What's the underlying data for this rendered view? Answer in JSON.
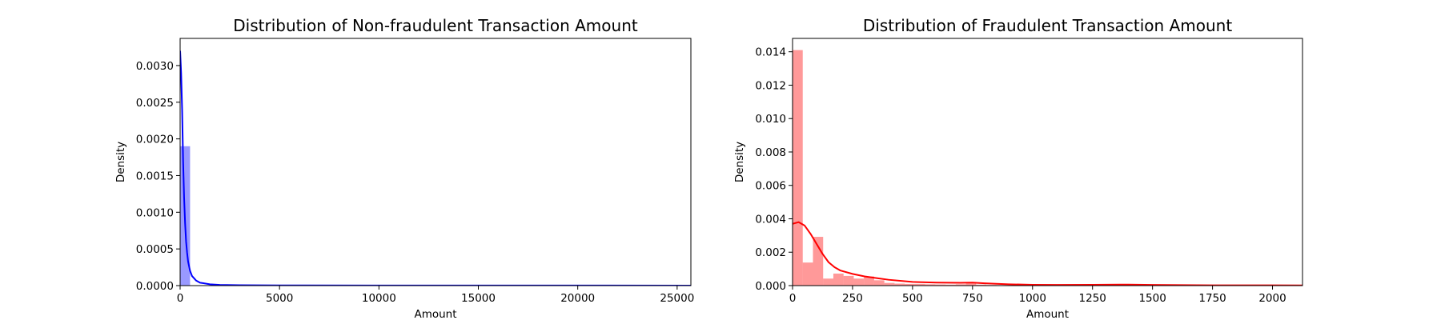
{
  "chart_data": [
    {
      "type": "histogram+kde",
      "title": "Distribution of Non-fraudulent Transaction Amount",
      "xlabel": "Amount",
      "ylabel": "Density",
      "xlim": [
        0,
        25691
      ],
      "ylim": [
        0,
        0.00337
      ],
      "xticks": [
        0,
        5000,
        10000,
        15000,
        20000,
        25000
      ],
      "xtick_labels": [
        "0",
        "5000",
        "10000",
        "15000",
        "20000",
        "25000"
      ],
      "yticks": [
        0,
        0.0005,
        0.001,
        0.0015,
        0.002,
        0.0025,
        0.003
      ],
      "ytick_labels": [
        "0.0000",
        "0.0005",
        "0.0010",
        "0.0015",
        "0.0020",
        "0.0025",
        "0.0030"
      ],
      "bar_color": "#0000ff",
      "line_color": "#0000ff",
      "bins": [
        {
          "x0": 0,
          "x1": 500,
          "density": 0.0019
        }
      ],
      "kde": {
        "x": [
          0,
          50,
          100,
          150,
          200,
          250,
          300,
          350,
          400,
          500,
          600,
          800,
          1000,
          1500,
          2000,
          3000,
          5000,
          10000,
          15000,
          20000,
          25691
        ],
        "y": [
          0.0032,
          0.0029,
          0.0024,
          0.0017,
          0.0012,
          0.00085,
          0.0006,
          0.00045,
          0.00033,
          0.0002,
          0.00013,
          7e-05,
          4e-05,
          1.8e-05,
          1e-05,
          6e-06,
          3e-06,
          1.5e-06,
          1e-06,
          8e-07,
          5e-07
        ]
      }
    },
    {
      "type": "histogram+kde",
      "title": "Distribution of Fraudulent Transaction Amount",
      "xlabel": "Amount",
      "ylabel": "Density",
      "xlim": [
        0,
        2125
      ],
      "ylim": [
        0,
        0.0148
      ],
      "xticks": [
        0,
        250,
        500,
        750,
        1000,
        1250,
        1500,
        1750,
        2000
      ],
      "xtick_labels": [
        "0",
        "250",
        "500",
        "750",
        "1000",
        "1250",
        "1500",
        "1750",
        "2000"
      ],
      "yticks": [
        0,
        0.002,
        0.004,
        0.006,
        0.008,
        0.01,
        0.012,
        0.014
      ],
      "ytick_labels": [
        "0.000",
        "0.002",
        "0.004",
        "0.006",
        "0.008",
        "0.010",
        "0.012",
        "0.014"
      ],
      "bar_color": "#ff0000",
      "line_color": "#ff0000",
      "bins": [
        {
          "x0": 0,
          "x1": 42.5,
          "density": 0.0141
        },
        {
          "x0": 42.5,
          "x1": 85,
          "density": 0.00138
        },
        {
          "x0": 85,
          "x1": 127.5,
          "density": 0.00292
        },
        {
          "x0": 127.5,
          "x1": 170,
          "density": 0.00042
        },
        {
          "x0": 170,
          "x1": 212.5,
          "density": 0.00072
        },
        {
          "x0": 212.5,
          "x1": 255,
          "density": 0.00058
        },
        {
          "x0": 255,
          "x1": 297.5,
          "density": 0.00042
        },
        {
          "x0": 297.5,
          "x1": 340,
          "density": 0.00055
        },
        {
          "x0": 340,
          "x1": 382.5,
          "density": 0.00032
        },
        {
          "x0": 382.5,
          "x1": 425,
          "density": 0.00016
        },
        {
          "x0": 425,
          "x1": 467.5,
          "density": 0.00012
        },
        {
          "x0": 467.5,
          "x1": 510,
          "density": 0.0001
        },
        {
          "x0": 510,
          "x1": 552.5,
          "density": 0.0001
        },
        {
          "x0": 552.5,
          "x1": 595,
          "density": 8e-05
        },
        {
          "x0": 595,
          "x1": 637.5,
          "density": 7e-05
        },
        {
          "x0": 637.5,
          "x1": 680,
          "density": 6e-05
        },
        {
          "x0": 680,
          "x1": 722.5,
          "density": 8e-05
        },
        {
          "x0": 722.5,
          "x1": 765,
          "density": 0.00012
        },
        {
          "x0": 765,
          "x1": 807.5,
          "density": 6e-05
        },
        {
          "x0": 807.5,
          "x1": 850,
          "density": 4e-05
        },
        {
          "x0": 850,
          "x1": 892.5,
          "density": 3e-05
        },
        {
          "x0": 892.5,
          "x1": 935,
          "density": 2e-05
        },
        {
          "x0": 935,
          "x1": 977.5,
          "density": 2e-05
        },
        {
          "x0": 977.5,
          "x1": 1020,
          "density": 2e-05
        },
        {
          "x0": 1275,
          "x1": 1317.5,
          "density": 4e-05
        },
        {
          "x0": 1360,
          "x1": 1402.5,
          "density": 4e-05
        },
        {
          "x0": 1445,
          "x1": 1487.5,
          "density": 3e-05
        },
        {
          "x0": 2082.5,
          "x1": 2125,
          "density": 2e-05
        }
      ],
      "kde": {
        "x": [
          0,
          25,
          50,
          75,
          100,
          125,
          150,
          175,
          200,
          250,
          300,
          350,
          400,
          500,
          600,
          700,
          750,
          800,
          900,
          1000,
          1100,
          1250,
          1400,
          1500,
          1750,
          2000,
          2125
        ],
        "y": [
          0.0037,
          0.0038,
          0.0036,
          0.0031,
          0.0025,
          0.0019,
          0.0014,
          0.0011,
          0.0009,
          0.0007,
          0.00055,
          0.00045,
          0.00035,
          0.00022,
          0.00018,
          0.00017,
          0.00018,
          0.00014,
          8e-05,
          5e-05,
          4e-05,
          5e-05,
          6e-05,
          4e-05,
          2e-05,
          2e-05,
          1e-05
        ]
      }
    }
  ]
}
